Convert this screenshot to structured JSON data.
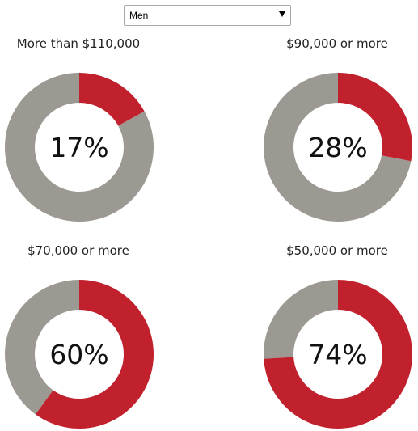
{
  "filter": {
    "selected": "Men"
  },
  "colors": {
    "accent": "#c0212d",
    "remainder": "#9c9892"
  },
  "chart_data": [
    {
      "type": "pie",
      "title": "More than $110,000",
      "value": 17,
      "label": "17%"
    },
    {
      "type": "pie",
      "title": "$90,000 or more",
      "value": 28,
      "label": "28%"
    },
    {
      "type": "pie",
      "title": "$70,000 or more",
      "value": 60,
      "label": "60%"
    },
    {
      "type": "pie",
      "title": "$50,000 or more",
      "value": 74,
      "label": "74%"
    }
  ]
}
